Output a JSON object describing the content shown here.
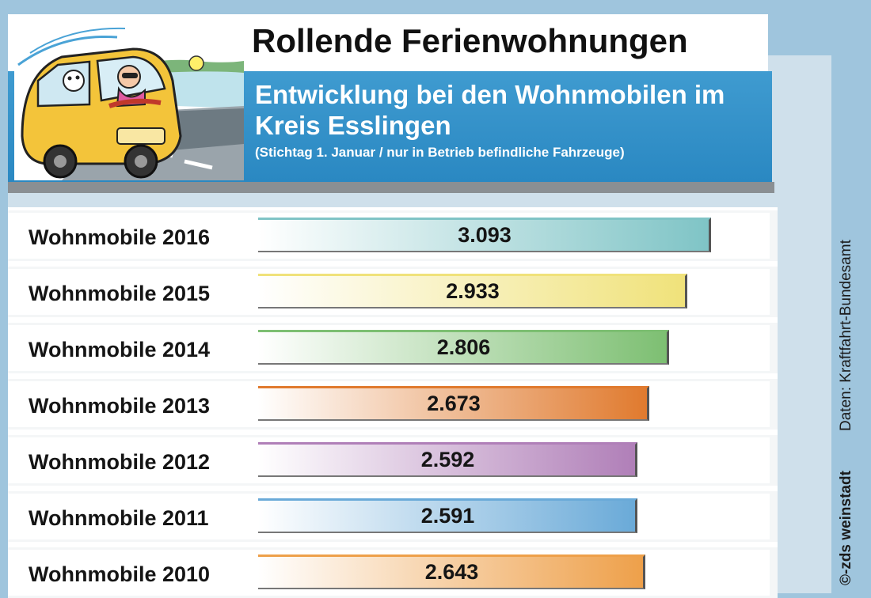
{
  "header": {
    "title": "Rollende Ferienwohnungen",
    "subtitle": "Entwicklung bei den Wohnmobilen im Kreis Esslingen",
    "note": "(Stichtag 1. Januar / nur in Betrieb befindliche Fahrzeuge)"
  },
  "side": {
    "source": "Daten: Kraftfahrt-Bundesamt",
    "credit": "©-zds  weinstadt"
  },
  "illustration": {
    "icon": "camper-van-dog-driver-illustration"
  },
  "chart_data": {
    "type": "bar",
    "orientation": "horizontal",
    "title": "Rollende Ferienwohnungen",
    "subtitle": "Entwicklung bei den Wohnmobilen im Kreis Esslingen",
    "categories": [
      "Wohnmobile 2016",
      "Wohnmobile 2015",
      "Wohnmobile 2014",
      "Wohnmobile 2013",
      "Wohnmobile 2012",
      "Wohnmobile 2011",
      "Wohnmobile 2010"
    ],
    "values": [
      3093,
      2933,
      2806,
      2673,
      2592,
      2591,
      2643
    ],
    "value_labels": [
      "3.093",
      "2.933",
      "2.806",
      "2.673",
      "2.592",
      "2.591",
      "2.643"
    ],
    "colors": [
      "#7fc4c6",
      "#f0e27a",
      "#7dbf72",
      "#e07a2e",
      "#b07fb8",
      "#6aaad8",
      "#eea04a"
    ],
    "xlim": [
      0,
      3093
    ],
    "grid": false,
    "legend": "none"
  }
}
